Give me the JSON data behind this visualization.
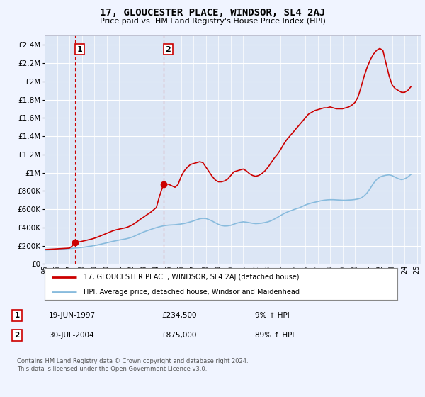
{
  "title": "17, GLOUCESTER PLACE, WINDSOR, SL4 2AJ",
  "subtitle": "Price paid vs. HM Land Registry's House Price Index (HPI)",
  "background_color": "#f0f4ff",
  "plot_background_color": "#dce6f5",
  "grid_color": "#ffffff",
  "sale1_date": 1997.47,
  "sale1_price": 234500,
  "sale1_label": "1",
  "sale2_date": 2004.58,
  "sale2_price": 875000,
  "sale2_label": "2",
  "legend_line1": "17, GLOUCESTER PLACE, WINDSOR, SL4 2AJ (detached house)",
  "legend_line2": "HPI: Average price, detached house, Windsor and Maidenhead",
  "annotation1_date": "19-JUN-1997",
  "annotation1_price": "£234,500",
  "annotation1_hpi": "9% ↑ HPI",
  "annotation2_date": "30-JUL-2004",
  "annotation2_price": "£875,000",
  "annotation2_hpi": "89% ↑ HPI",
  "footer": "Contains HM Land Registry data © Crown copyright and database right 2024.\nThis data is licensed under the Open Government Licence v3.0.",
  "ylim_max": 2500000,
  "line_color_house": "#cc0000",
  "line_color_hpi": "#88bbdd",
  "hpi_data": {
    "years": [
      1995.0,
      1995.25,
      1995.5,
      1995.75,
      1996.0,
      1996.25,
      1996.5,
      1996.75,
      1997.0,
      1997.25,
      1997.5,
      1997.75,
      1998.0,
      1998.25,
      1998.5,
      1998.75,
      1999.0,
      1999.25,
      1999.5,
      1999.75,
      2000.0,
      2000.25,
      2000.5,
      2000.75,
      2001.0,
      2001.25,
      2001.5,
      2001.75,
      2002.0,
      2002.25,
      2002.5,
      2002.75,
      2003.0,
      2003.25,
      2003.5,
      2003.75,
      2004.0,
      2004.25,
      2004.5,
      2004.75,
      2005.0,
      2005.25,
      2005.5,
      2005.75,
      2006.0,
      2006.25,
      2006.5,
      2006.75,
      2007.0,
      2007.25,
      2007.5,
      2007.75,
      2008.0,
      2008.25,
      2008.5,
      2008.75,
      2009.0,
      2009.25,
      2009.5,
      2009.75,
      2010.0,
      2010.25,
      2010.5,
      2010.75,
      2011.0,
      2011.25,
      2011.5,
      2011.75,
      2012.0,
      2012.25,
      2012.5,
      2012.75,
      2013.0,
      2013.25,
      2013.5,
      2013.75,
      2014.0,
      2014.25,
      2014.5,
      2014.75,
      2015.0,
      2015.25,
      2015.5,
      2015.75,
      2016.0,
      2016.25,
      2016.5,
      2016.75,
      2017.0,
      2017.25,
      2017.5,
      2017.75,
      2018.0,
      2018.25,
      2018.5,
      2018.75,
      2019.0,
      2019.25,
      2019.5,
      2019.75,
      2020.0,
      2020.25,
      2020.5,
      2020.75,
      2021.0,
      2021.25,
      2021.5,
      2021.75,
      2022.0,
      2022.25,
      2022.5,
      2022.75,
      2023.0,
      2023.25,
      2023.5,
      2023.75,
      2024.0,
      2024.25,
      2024.5
    ],
    "values": [
      152000,
      154000,
      156000,
      158000,
      160000,
      162000,
      164000,
      167000,
      170000,
      172000,
      175000,
      178000,
      182000,
      186000,
      191000,
      196000,
      202000,
      208000,
      216000,
      224000,
      232000,
      240000,
      248000,
      255000,
      262000,
      268000,
      274000,
      282000,
      292000,
      306000,
      322000,
      338000,
      352000,
      364000,
      376000,
      388000,
      398000,
      408000,
      416000,
      422000,
      426000,
      428000,
      430000,
      434000,
      438000,
      444000,
      452000,
      462000,
      472000,
      484000,
      496000,
      500000,
      498000,
      486000,
      470000,
      452000,
      434000,
      422000,
      416000,
      418000,
      424000,
      436000,
      448000,
      456000,
      462000,
      458000,
      452000,
      446000,
      442000,
      444000,
      448000,
      454000,
      462000,
      474000,
      492000,
      510000,
      530000,
      550000,
      566000,
      580000,
      592000,
      604000,
      614000,
      630000,
      646000,
      658000,
      668000,
      676000,
      684000,
      692000,
      698000,
      702000,
      704000,
      704000,
      702000,
      700000,
      698000,
      698000,
      700000,
      702000,
      706000,
      712000,
      722000,
      746000,
      782000,
      832000,
      884000,
      926000,
      952000,
      964000,
      972000,
      976000,
      968000,
      950000,
      934000,
      924000,
      932000,
      952000,
      980000
    ]
  },
  "house_data": {
    "years": [
      1995.0,
      1995.25,
      1995.5,
      1995.75,
      1996.0,
      1996.25,
      1996.5,
      1996.75,
      1997.0,
      1997.25,
      1997.47,
      1997.75,
      1998.0,
      1998.25,
      1998.5,
      1998.75,
      1999.0,
      1999.25,
      1999.5,
      1999.75,
      2000.0,
      2000.25,
      2000.5,
      2000.75,
      2001.0,
      2001.25,
      2001.5,
      2001.75,
      2002.0,
      2002.25,
      2002.5,
      2002.75,
      2003.0,
      2003.25,
      2003.5,
      2003.75,
      2004.0,
      2004.25,
      2004.58,
      2004.75,
      2005.0,
      2005.25,
      2005.5,
      2005.75,
      2006.0,
      2006.25,
      2006.5,
      2006.75,
      2007.0,
      2007.25,
      2007.5,
      2007.75,
      2008.0,
      2008.25,
      2008.5,
      2008.75,
      2009.0,
      2009.25,
      2009.5,
      2009.75,
      2010.0,
      2010.25,
      2010.5,
      2010.75,
      2011.0,
      2011.25,
      2011.5,
      2011.75,
      2012.0,
      2012.25,
      2012.5,
      2012.75,
      2013.0,
      2013.25,
      2013.5,
      2013.75,
      2014.0,
      2014.25,
      2014.5,
      2014.75,
      2015.0,
      2015.25,
      2015.5,
      2015.75,
      2016.0,
      2016.25,
      2016.5,
      2016.75,
      2017.0,
      2017.25,
      2017.5,
      2017.75,
      2018.0,
      2018.25,
      2018.5,
      2018.75,
      2019.0,
      2019.25,
      2019.5,
      2019.75,
      2020.0,
      2020.25,
      2020.5,
      2020.75,
      2021.0,
      2021.25,
      2021.5,
      2021.75,
      2022.0,
      2022.25,
      2022.5,
      2022.75,
      2023.0,
      2023.25,
      2023.5,
      2023.75,
      2024.0,
      2024.25,
      2024.5
    ],
    "values": [
      158000,
      160000,
      162000,
      164000,
      166000,
      168000,
      170000,
      172000,
      174000,
      200000,
      234500,
      240000,
      248000,
      256000,
      264000,
      272000,
      282000,
      294000,
      308000,
      322000,
      336000,
      350000,
      364000,
      374000,
      382000,
      390000,
      396000,
      408000,
      424000,
      444000,
      468000,
      494000,
      516000,
      540000,
      562000,
      590000,
      618000,
      740000,
      875000,
      878000,
      872000,
      856000,
      840000,
      870000,
      960000,
      1020000,
      1060000,
      1090000,
      1100000,
      1110000,
      1120000,
      1110000,
      1060000,
      1010000,
      960000,
      920000,
      900000,
      900000,
      910000,
      930000,
      970000,
      1010000,
      1020000,
      1030000,
      1040000,
      1020000,
      990000,
      970000,
      960000,
      970000,
      990000,
      1020000,
      1060000,
      1110000,
      1160000,
      1200000,
      1250000,
      1310000,
      1360000,
      1400000,
      1440000,
      1480000,
      1520000,
      1560000,
      1600000,
      1640000,
      1660000,
      1680000,
      1690000,
      1700000,
      1710000,
      1710000,
      1720000,
      1710000,
      1700000,
      1700000,
      1700000,
      1710000,
      1720000,
      1740000,
      1770000,
      1830000,
      1940000,
      2060000,
      2160000,
      2240000,
      2300000,
      2340000,
      2360000,
      2340000,
      2200000,
      2060000,
      1960000,
      1920000,
      1900000,
      1880000,
      1880000,
      1900000,
      1940000
    ]
  }
}
